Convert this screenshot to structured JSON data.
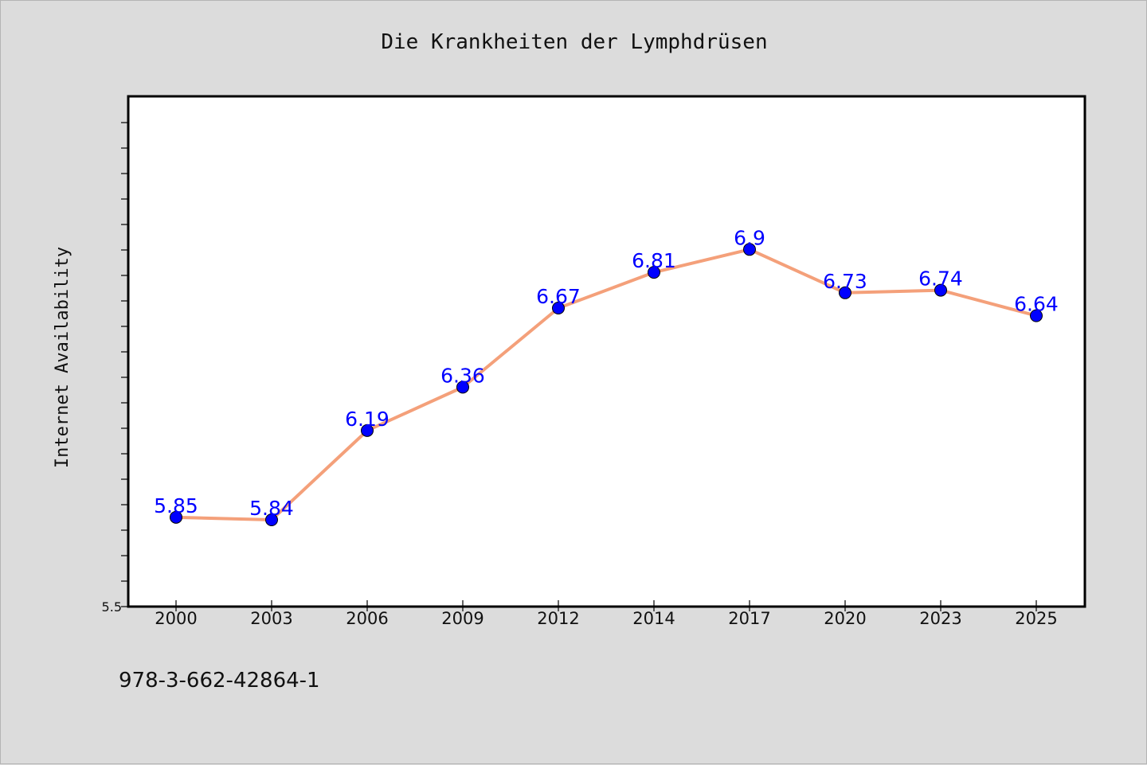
{
  "chart_data": {
    "type": "line",
    "title": "Die Krankheiten der Lymphdrüsen",
    "xlabel": "",
    "ylabel": "Internet Availability",
    "categories": [
      "2000",
      "2003",
      "2006",
      "2009",
      "2012",
      "2014",
      "2017",
      "2020",
      "2023",
      "2025"
    ],
    "series": [
      {
        "values": [
          5.85,
          5.84,
          6.19,
          6.36,
          6.67,
          6.81,
          6.9,
          6.73,
          6.74,
          6.64
        ],
        "labels": [
          "5.85",
          "5.84",
          "6.19",
          "6.36",
          "6.67",
          "6.81",
          "6.9",
          "6.73",
          "6.74",
          "6.64"
        ]
      }
    ],
    "ylim": [
      5.5,
      7.5
    ],
    "ytick_label": "5.5",
    "grid": false,
    "line_color": "#f4a07a",
    "marker_color": "#0000ff",
    "label_color": "#0000ff"
  },
  "footer": {
    "isbn": "978-3-662-42864-1"
  }
}
